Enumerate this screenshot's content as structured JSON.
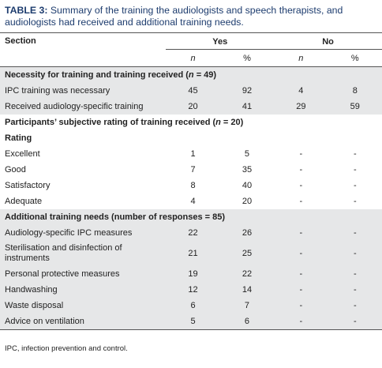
{
  "title": {
    "label": "TABLE 3:",
    "text": "Summary of the training the audiologists and speech therapists, and audiologists had received and additional training needs."
  },
  "table": {
    "header": {
      "section": "Section",
      "yes": "Yes",
      "no": "No",
      "sub": [
        [
          "n"
        ],
        "%",
        [
          "n"
        ],
        "%"
      ]
    },
    "groups": [
      {
        "shaded": true,
        "rows": [
          {
            "label": [
              "Necessity for training and training received (",
              "n",
              " = 49)"
            ]
          },
          {
            "label": "IPC training was necessary",
            "cells": [
              "45",
              "92",
              "4",
              "8"
            ]
          },
          {
            "label": "Received audiology-specific training",
            "cells": [
              "20",
              "41",
              "29",
              "59"
            ]
          }
        ]
      },
      {
        "shaded": false,
        "rows": [
          {
            "label": [
              "Participants’ subjective rating of training received (",
              "n",
              " = 20)"
            ]
          },
          {
            "label": [
              "Rating"
            ]
          },
          {
            "label": "Excellent",
            "cells": [
              "1",
              "5",
              "-",
              "-"
            ]
          },
          {
            "label": "Good",
            "cells": [
              "7",
              "35",
              "-",
              "-"
            ]
          },
          {
            "label": "Satisfactory",
            "cells": [
              "8",
              "40",
              "-",
              "-"
            ]
          },
          {
            "label": "Adequate",
            "cells": [
              "4",
              "20",
              "-",
              "-"
            ]
          }
        ]
      },
      {
        "shaded": true,
        "rows": [
          {
            "label": [
              "Additional training needs (number of responses = 85)"
            ]
          },
          {
            "label": "Audiology-specific IPC measures",
            "cells": [
              "22",
              "26",
              "-",
              "-"
            ]
          },
          {
            "label": "Sterilisation and disinfection of instruments",
            "cells": [
              "21",
              "25",
              "-",
              "-"
            ]
          },
          {
            "label": "Personal protective measures",
            "cells": [
              "19",
              "22",
              "-",
              "-"
            ]
          },
          {
            "label": "Handwashing",
            "cells": [
              "12",
              "14",
              "-",
              "-"
            ]
          },
          {
            "label": "Waste disposal",
            "cells": [
              "6",
              "7",
              "-",
              "-"
            ]
          },
          {
            "label": "Advice on ventilation",
            "cells": [
              "5",
              "6",
              "-",
              "-"
            ]
          }
        ]
      }
    ]
  },
  "footnote": "IPC, infection prevention and control."
}
